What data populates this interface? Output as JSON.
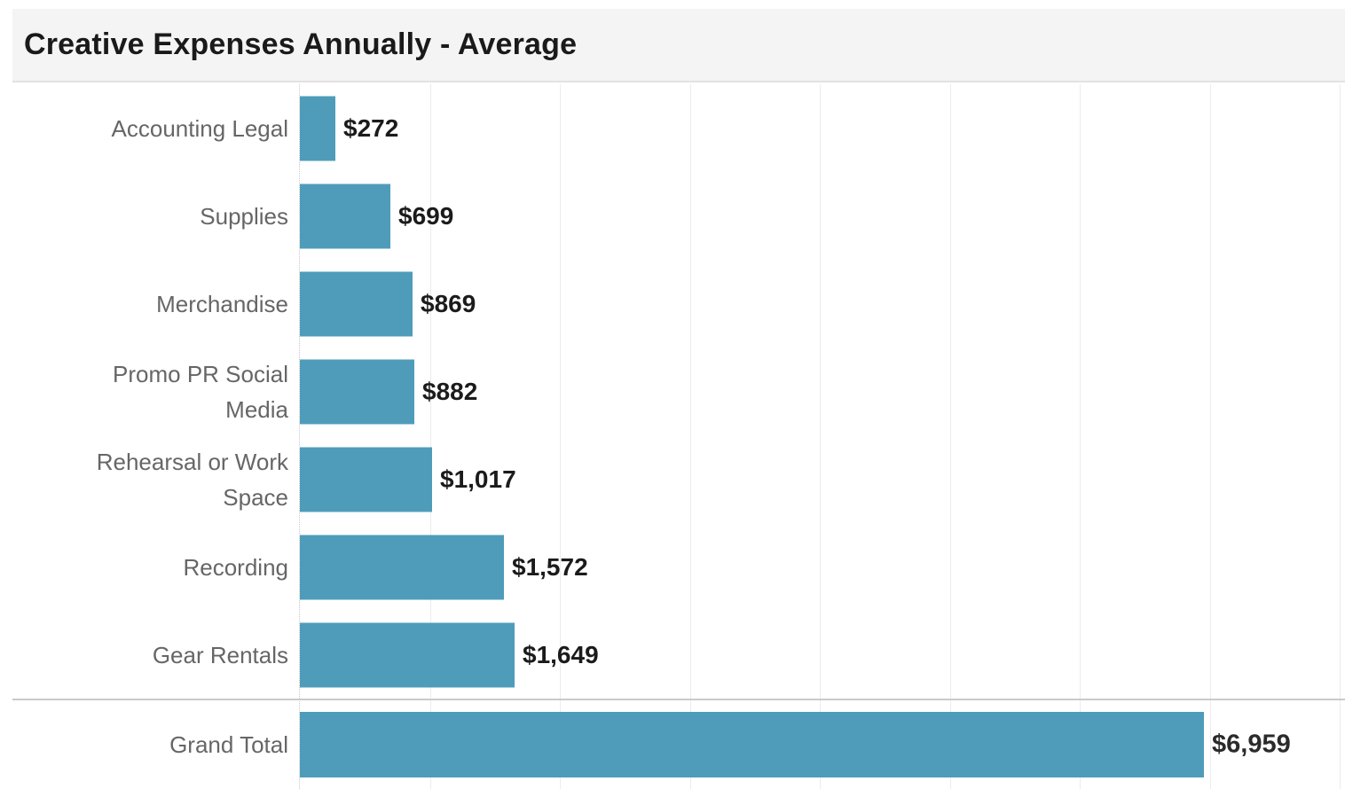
{
  "title": "Creative Expenses Annually - Average",
  "colors": {
    "bar": "#4e9cba",
    "category_label": "#666666",
    "value_label": "#1b1b1b",
    "title_background": "#f4f4f4",
    "gridline": "#ececec",
    "separator": "#cacaca"
  },
  "chart_data": {
    "type": "bar",
    "orientation": "horizontal",
    "title": "Creative Expenses Annually - Average",
    "categories": [
      "Accounting Legal",
      "Supplies",
      "Merchandise",
      "Promo PR Social Media",
      "Rehearsal or Work Space",
      "Recording",
      "Gear Rentals"
    ],
    "values": [
      272,
      699,
      869,
      882,
      1017,
      1572,
      1649
    ],
    "value_labels": [
      "$272",
      "$699",
      "$869",
      "$882",
      "$1,017",
      "$1,572",
      "$1,649"
    ],
    "grand_total": {
      "category": "Grand Total",
      "value": 6959,
      "label": "$6,959"
    },
    "xlabel": "",
    "ylabel": "",
    "xlim": [
      0,
      8000
    ],
    "gridline_interval": 1000,
    "grid": true,
    "legend": false,
    "value_label_position": "end-of-bar"
  }
}
